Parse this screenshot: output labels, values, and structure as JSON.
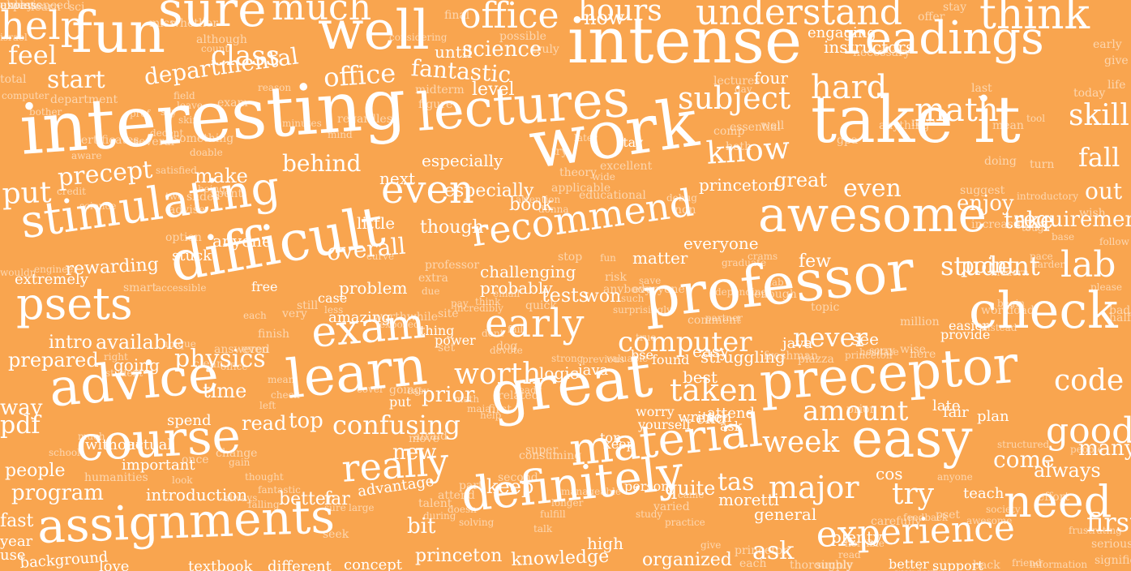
{
  "background_color": "#f9a54f",
  "text_color": "#ffffff",
  "words": [
    "help",
    "fun",
    "sure",
    "much",
    "well",
    "office",
    "hours",
    "intense",
    "understand",
    "readings",
    "think",
    "feel",
    "class",
    "start",
    "departmental",
    "office",
    "fantastic",
    "science",
    "now",
    "interesting",
    "lectures",
    "work",
    "take it",
    "subject",
    "hard",
    "math",
    "skill",
    "know",
    "put",
    "precept",
    "make",
    "behind",
    "even",
    "especially",
    "stimulating",
    "recommend",
    "awesome",
    "great",
    "even",
    "enjoy",
    "requirement",
    "out",
    "fall",
    "difficult",
    "lab",
    "student",
    "psets",
    "overall",
    "exam",
    "early",
    "professor",
    "check",
    "rewarding",
    "stuck",
    "anyone",
    "extremely",
    "learn",
    "computer",
    "never",
    "preceptor",
    "advice",
    "physics",
    "worth",
    "great",
    "taken",
    "amount",
    "code",
    "good",
    "course",
    "confusing",
    "really",
    "material",
    "week",
    "easy",
    "people",
    "program",
    "assignments",
    "definitely",
    "major",
    "try",
    "need",
    "experience",
    "first",
    "tas",
    "general",
    "ask",
    "prepared",
    "intro",
    "available",
    "going",
    "way",
    "pdf",
    "time",
    "read",
    "top",
    "prior",
    "knowledge",
    "organized",
    "princeton",
    "background",
    "love",
    "textbook",
    "different",
    "concept",
    "bit",
    "plenty",
    "point",
    "take",
    "especially",
    "challenging",
    "probably",
    "matter",
    "everyone",
    "few",
    "new",
    "keep",
    "come",
    "always",
    "many",
    "fast",
    "year",
    "use",
    "introduction",
    "better",
    "far",
    "advantage",
    "without",
    "actual",
    "spend",
    "important",
    "next",
    "book",
    "princeton",
    "little",
    "though",
    "amazing",
    "problem",
    "tests",
    "won",
    "see",
    "easy",
    "struggling",
    "java",
    "best",
    "logic",
    "java",
    "high",
    "bse",
    "worry",
    "late",
    "fair",
    "plan",
    "cos",
    "teach",
    "quite",
    "moretti",
    "person",
    "yourself",
    "written",
    "end",
    "attend",
    "ask",
    "super",
    "consuming",
    "ton",
    "keep",
    "second",
    "part",
    "afraid",
    "move",
    "put",
    "level",
    "case",
    "still",
    "very",
    "each",
    "finish",
    "advise",
    "option",
    "spent",
    "slides",
    "credit",
    "being",
    "two",
    "science",
    "free",
    "less",
    "site",
    "email",
    "pay",
    "think",
    "quick",
    "fail",
    "stop",
    "stay",
    "theory",
    "essential",
    "comp",
    "both",
    "well",
    "gpa",
    "anything",
    "nice",
    "mean",
    "doing",
    "turn",
    "today",
    "early",
    "give",
    "life",
    "half",
    "bad",
    "please",
    "follow",
    "wish",
    "base",
    "tough",
    "introductory",
    "increasingly",
    "modern",
    "pace",
    "harder",
    "engineer",
    "wouldn",
    "smart",
    "accessible",
    "last",
    "offer",
    "stay",
    "sci",
    "miss",
    "whether",
    "although",
    "count",
    "certificates",
    "aware",
    "several",
    "decent",
    "satisfied",
    "reason",
    "exam",
    "field",
    "leave",
    "minutes",
    "regardless",
    "mind",
    "something",
    "doable",
    "engaging",
    "instructors",
    "necessary",
    "day",
    "four",
    "lectures",
    "final",
    "possible",
    "truly",
    "until",
    "midterm",
    "department",
    "computer",
    "bother",
    "total",
    "israel",
    "learn",
    "prof",
    "sky",
    "skim",
    "considering",
    "attention",
    "donna",
    "debug",
    "non",
    "suggest",
    "tool",
    "applicable",
    "educational",
    "wide",
    "excellent",
    "later",
    "try",
    "figure",
    "extra",
    "due",
    "incredibly",
    "thing",
    "power",
    "set",
    "dont",
    "dog",
    "devote",
    "strong",
    "previous",
    "valuable",
    "found",
    "freshman",
    "piazza",
    "princeton",
    "hesitate",
    "sorry",
    "wise",
    "here",
    "prior",
    "million",
    "workload",
    "easier",
    "provide",
    "instead",
    "begin",
    "topic",
    "enough",
    "lab",
    "graduate",
    "crams",
    "depending",
    "comment",
    "partner",
    "true",
    "surprisingly",
    "such",
    "everyone",
    "save",
    "risk",
    "fun",
    "anybody",
    "professor",
    "curve",
    "worthwhile",
    "exposed",
    "math",
    "maia",
    "help",
    "first",
    "related",
    "ready",
    "cover",
    "going",
    "easy",
    "mean",
    "check",
    "left",
    "even",
    "office",
    "answered",
    "clear",
    "unique",
    "right",
    "student",
    "much",
    "school",
    "humanities",
    "gain",
    "thought",
    "fantastic",
    "change",
    "once",
    "look",
    "always",
    "falling",
    "seek",
    "sure",
    "large",
    "talent",
    "during",
    "attend",
    "doesn",
    "solving",
    "talk",
    "fulfill",
    "longer",
    "manageable",
    "study",
    "varied",
    "practice",
    "came",
    "give",
    "princeton",
    "each",
    "thoroughly",
    "simply",
    "read",
    "better",
    "wonderful",
    "support",
    "back",
    "friend",
    "information",
    "significant",
    "serious",
    "frustrating",
    "society",
    "awesome",
    "pset",
    "feedback",
    "carefully",
    "horrible",
    "structured",
    "people",
    "anyone",
    "effort",
    "unless",
    "useless",
    "experienced",
    "alway"
  ],
  "words_note": ""
}
